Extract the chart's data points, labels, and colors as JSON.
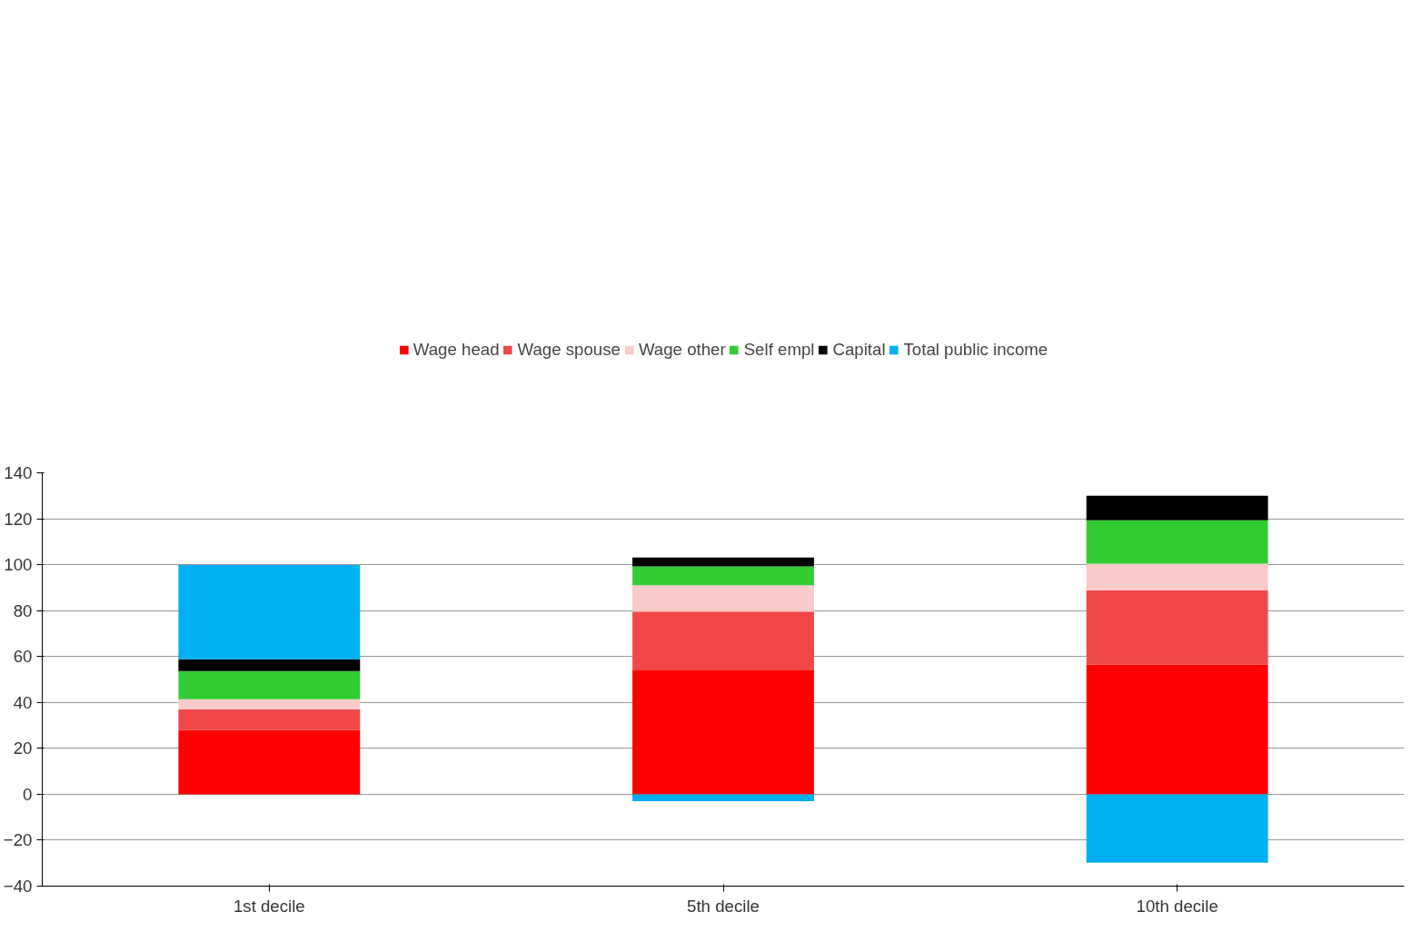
{
  "chart_data": {
    "type": "bar",
    "stacked": true,
    "categories": [
      "1st decile",
      "5th decile",
      "10th decile"
    ],
    "series": [
      {
        "name": "Wage head",
        "color": "#ff0000",
        "values": [
          28,
          54,
          56.5
        ]
      },
      {
        "name": "Wage spouse",
        "color": "#f04848",
        "values": [
          9,
          25.6,
          32.4
        ]
      },
      {
        "name": "Wage other",
        "color": "#f8caca",
        "values": [
          4.4,
          11.4,
          11.5
        ]
      },
      {
        "name": "Self empl",
        "color": "#33cc33",
        "values": [
          12.3,
          8.3,
          18.9
        ]
      },
      {
        "name": "Capital",
        "color": "#000000",
        "values": [
          5.1,
          3.8,
          10.7
        ]
      },
      {
        "name": "Total public income",
        "color": "#00b0f0",
        "values": [
          41,
          -3,
          -29.8
        ]
      }
    ],
    "ylim": [
      -40,
      140
    ],
    "yticks": [
      -40,
      -20,
      0,
      20,
      40,
      60,
      80,
      100,
      120,
      140
    ],
    "grid": "y",
    "legend": "top"
  }
}
